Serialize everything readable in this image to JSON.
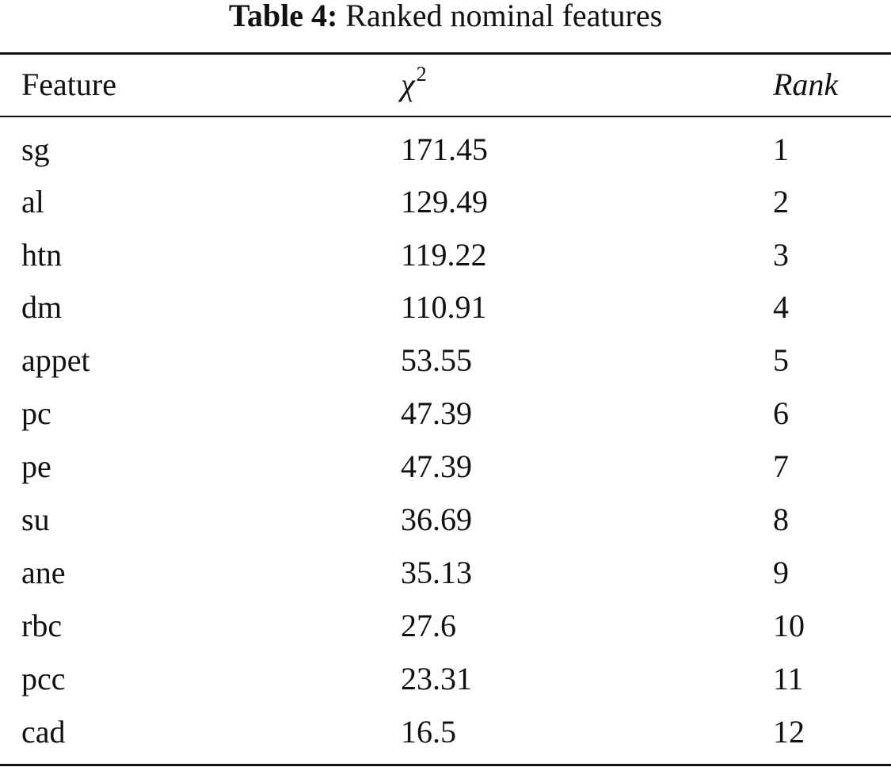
{
  "caption": {
    "label": "Table 4:",
    "text": "Ranked nominal features"
  },
  "table": {
    "headers": {
      "feature": "Feature",
      "chi_symbol": "χ",
      "chi_exponent": "2",
      "rank": "Rank"
    },
    "rows": [
      {
        "feature": "sg",
        "chi2": "171.45",
        "rank": "1"
      },
      {
        "feature": "al",
        "chi2": "129.49",
        "rank": "2"
      },
      {
        "feature": "htn",
        "chi2": "119.22",
        "rank": "3"
      },
      {
        "feature": "dm",
        "chi2": "110.91",
        "rank": "4"
      },
      {
        "feature": "appet",
        "chi2": "53.55",
        "rank": "5"
      },
      {
        "feature": "pc",
        "chi2": "47.39",
        "rank": "6"
      },
      {
        "feature": "pe",
        "chi2": "47.39",
        "rank": "7"
      },
      {
        "feature": "su",
        "chi2": "36.69",
        "rank": "8"
      },
      {
        "feature": "ane",
        "chi2": "35.13",
        "rank": "9"
      },
      {
        "feature": "rbc",
        "chi2": "27.6",
        "rank": "10"
      },
      {
        "feature": "pcc",
        "chi2": "23.31",
        "rank": "11"
      },
      {
        "feature": "cad",
        "chi2": "16.5",
        "rank": "12"
      }
    ]
  }
}
